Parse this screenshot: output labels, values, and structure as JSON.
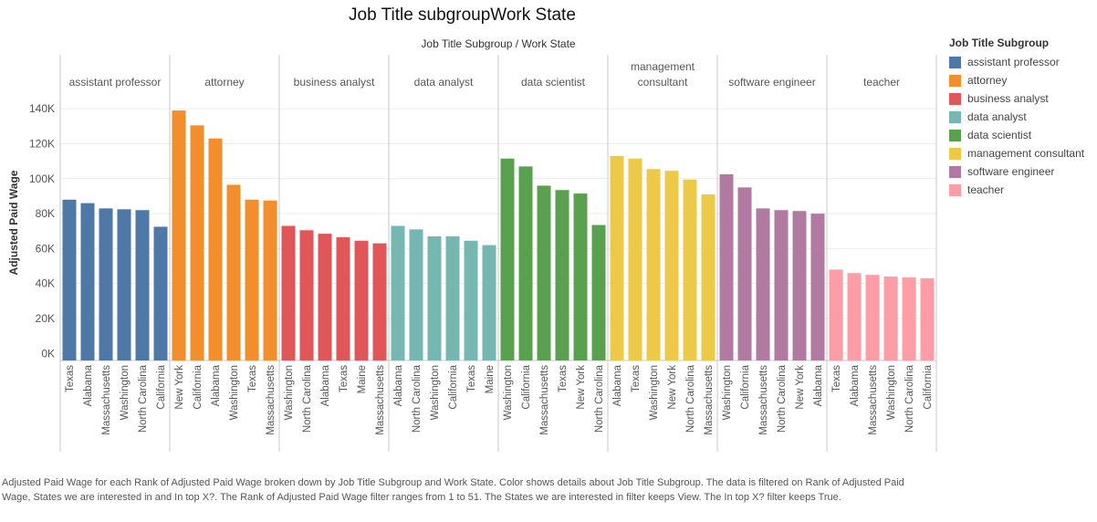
{
  "title": "Job Title subgroupWork State",
  "caption": "Adjusted Paid Wage for each Rank of Adjusted Paid Wage broken down by Job Title Subgroup and Work State.  Color shows details about Job Title Subgroup. The data is filtered on Rank of Adjusted Paid Wage, States we are interested in and In top X?. The Rank of Adjusted Paid Wage filter ranges from 1 to 51. The States we are interested in filter keeps View. The In top X? filter keeps True.",
  "legend": {
    "title": "Job Title Subgroup",
    "items": [
      {
        "label": "assistant professor",
        "color": "#4e79a7"
      },
      {
        "label": "attorney",
        "color": "#f28e2b"
      },
      {
        "label": "business analyst",
        "color": "#e15759"
      },
      {
        "label": "data analyst",
        "color": "#76b7b2"
      },
      {
        "label": "data scientist",
        "color": "#59a14f"
      },
      {
        "label": "management consultant",
        "color": "#edc948"
      },
      {
        "label": "software engineer",
        "color": "#b07aa1"
      },
      {
        "label": "teacher",
        "color": "#ff9da7"
      }
    ]
  },
  "chart_data": {
    "type": "bar",
    "title": "Job Title subgroupWork State",
    "column_header": "Job Title Subgroup  /  Work State",
    "ylabel": "Adjusted Paid Wage",
    "ylim": [
      -4000,
      150000
    ],
    "yticks": [
      0,
      20000,
      40000,
      60000,
      80000,
      100000,
      120000,
      140000
    ],
    "ytick_labels": [
      "0K",
      "20K",
      "40K",
      "60K",
      "80K",
      "100K",
      "120K",
      "140K"
    ],
    "grid": true,
    "legend_position": "right",
    "panels": [
      {
        "name": "assistant professor",
        "color": "#4e79a7",
        "categories": [
          "Texas",
          "Alabama",
          "Massachusetts",
          "Washington",
          "North Carolina",
          "California"
        ],
        "values": [
          88000,
          86000,
          83000,
          82500,
          82000,
          72500
        ]
      },
      {
        "name": "attorney",
        "color": "#f28e2b",
        "categories": [
          "New York",
          "California",
          "Alabama",
          "Washington",
          "Texas",
          "Massachusetts"
        ],
        "values": [
          139000,
          130500,
          123000,
          96500,
          88000,
          87500
        ]
      },
      {
        "name": "business analyst",
        "color": "#e15759",
        "categories": [
          "Washington",
          "North Carolina",
          "Alabama",
          "Texas",
          "Maine",
          "Massachusetts"
        ],
        "values": [
          73000,
          70500,
          68500,
          66500,
          64500,
          63000
        ]
      },
      {
        "name": "data analyst",
        "color": "#76b7b2",
        "categories": [
          "Alabama",
          "North Carolina",
          "Washington",
          "California",
          "Texas",
          "Maine"
        ],
        "values": [
          73000,
          71000,
          67000,
          67000,
          64500,
          62000
        ]
      },
      {
        "name": "data scientist",
        "color": "#59a14f",
        "categories": [
          "Washington",
          "California",
          "Massachusetts",
          "Texas",
          "New York",
          "North Carolina"
        ],
        "values": [
          111500,
          107000,
          96000,
          93500,
          91500,
          73500
        ]
      },
      {
        "name": "management consultant",
        "color": "#edc948",
        "categories": [
          "Alabama",
          "Texas",
          "Washington",
          "New York",
          "North Carolina",
          "Massachusetts"
        ],
        "values": [
          113000,
          111500,
          105500,
          104500,
          99500,
          91000
        ]
      },
      {
        "name": "software engineer",
        "color": "#b07aa1",
        "categories": [
          "Washington",
          "California",
          "Massachusetts",
          "North Carolina",
          "New York",
          "Alabama"
        ],
        "values": [
          102500,
          95000,
          83000,
          82000,
          81500,
          80000
        ]
      },
      {
        "name": "teacher",
        "color": "#ff9da7",
        "categories": [
          "Texas",
          "Alabama",
          "Massachusetts",
          "Washington",
          "North Carolina",
          "California"
        ],
        "values": [
          48000,
          46000,
          45000,
          44000,
          43500,
          43000
        ]
      }
    ]
  }
}
